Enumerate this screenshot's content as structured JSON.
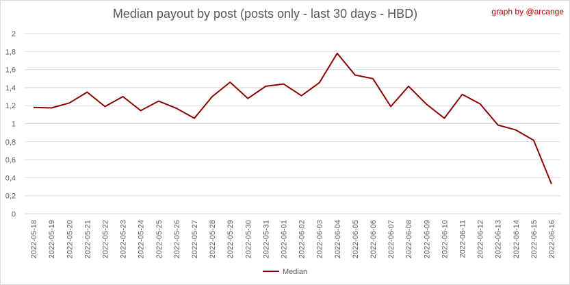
{
  "chart_data": {
    "type": "line",
    "title": "Median payout by post (posts only - last 30 days - HBD)",
    "credit": "graph by @arcange",
    "x": [
      "2022-05-18",
      "2022-05-19",
      "2022-05-20",
      "2022-05-21",
      "2022-05-22",
      "2022-05-23",
      "2022-05-24",
      "2022-05-25",
      "2022-05-26",
      "2022-05-27",
      "2022-05-28",
      "2022-05-29",
      "2022-05-30",
      "2022-05-31",
      "2022-06-01",
      "2022-06-02",
      "2022-06-03",
      "2022-06-04",
      "2022-06-05",
      "2022-06-06",
      "2022-06-07",
      "2022-06-08",
      "2022-06-09",
      "2022-06-10",
      "2022-06-11",
      "2022-06-12",
      "2022-06-13",
      "2022-06-14",
      "2022-06-15",
      "2022-06-16"
    ],
    "series": [
      {
        "name": "Median",
        "color": "#8b0000",
        "values": [
          1.18,
          1.175,
          1.23,
          1.35,
          1.19,
          1.3,
          1.145,
          1.25,
          1.17,
          1.06,
          1.3,
          1.46,
          1.28,
          1.415,
          1.44,
          1.31,
          1.455,
          1.78,
          1.54,
          1.5,
          1.19,
          1.415,
          1.215,
          1.06,
          1.325,
          1.22,
          0.985,
          0.93,
          0.815,
          0.33
        ]
      }
    ],
    "yticks": [
      "0",
      "0,2",
      "0,4",
      "0,6",
      "0,8",
      "1",
      "1,2",
      "1,4",
      "1,6",
      "1,8",
      "2"
    ],
    "ylim": [
      0,
      2
    ],
    "grid": true,
    "legend_position": "bottom"
  }
}
